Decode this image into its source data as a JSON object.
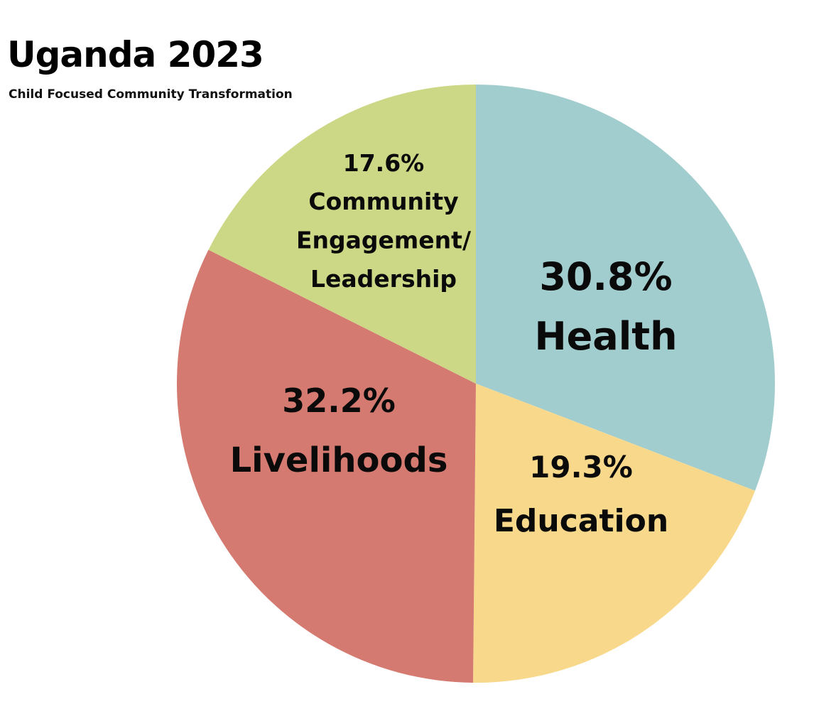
{
  "chart_data": {
    "type": "pie",
    "title": "Uganda 2023",
    "subtitle": "Child Focused Community Transformation",
    "slices": [
      {
        "label": "Health",
        "value": 30.8,
        "percent_label": "30.8%",
        "label_lines": [
          "Health"
        ],
        "color": "#a2cdcf"
      },
      {
        "label": "Education",
        "value": 19.3,
        "percent_label": "19.3%",
        "label_lines": [
          "Education"
        ],
        "color": "#f8d98c"
      },
      {
        "label": "Livelihoods",
        "value": 32.2,
        "percent_label": "32.2%",
        "label_lines": [
          "Livelihoods"
        ],
        "color": "#d47a70"
      },
      {
        "label": "Community Engagement/ Leadership",
        "value": 17.6,
        "percent_label": "17.6%",
        "label_lines": [
          "Community",
          "Engagement/",
          "Leadership"
        ],
        "color": "#ccd885"
      }
    ],
    "start": "12 o'clock",
    "direction": "clockwise",
    "legend": "none"
  }
}
